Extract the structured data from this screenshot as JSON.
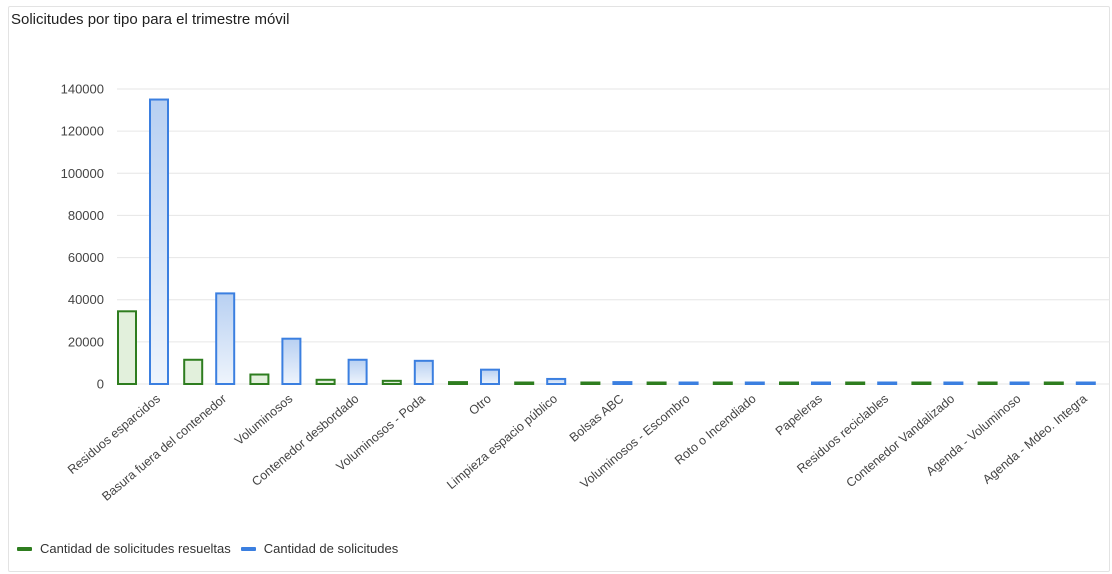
{
  "colors": {
    "resolved": "#2e7d1f",
    "resolved_fill": "#e2f0dc",
    "total": "#3b7fe0",
    "total_fill_top": "#b8d0f2",
    "total_fill_bottom": "#eef4fc",
    "grid": "#e6e6e6"
  },
  "chart_data": {
    "type": "bar",
    "title": "Solicitudes por tipo para el trimestre móvil",
    "xlabel": "",
    "ylabel": "",
    "ylim": [
      0,
      140000
    ],
    "yticks": [
      0,
      20000,
      40000,
      60000,
      80000,
      100000,
      120000,
      140000
    ],
    "grid": true,
    "legend_position": "bottom-left",
    "categories": [
      "Residuos esparcidos",
      "Basura fuera del contenedor",
      "Voluminosos",
      "Contenedor desbordado",
      "Voluminosos - Poda",
      "Otro",
      "Limpieza espacio público",
      "Bolsas ABC",
      "Voluminosos - Escombro",
      "Roto o Incendiado",
      "Papeleras",
      "Residuos reciclables",
      "Contenedor Vandalizado",
      "Agenda - Voluminoso",
      "Agenda - Mdeo. Integra"
    ],
    "series": [
      {
        "name": "Cantidad de solicitudes resueltas",
        "values": [
          34500,
          11500,
          4500,
          2000,
          1500,
          900,
          600,
          200,
          150,
          120,
          100,
          80,
          60,
          40,
          20
        ]
      },
      {
        "name": "Cantidad de solicitudes",
        "values": [
          135000,
          43000,
          21500,
          11500,
          11000,
          6800,
          2400,
          900,
          700,
          600,
          500,
          500,
          200,
          150,
          100
        ]
      }
    ]
  }
}
